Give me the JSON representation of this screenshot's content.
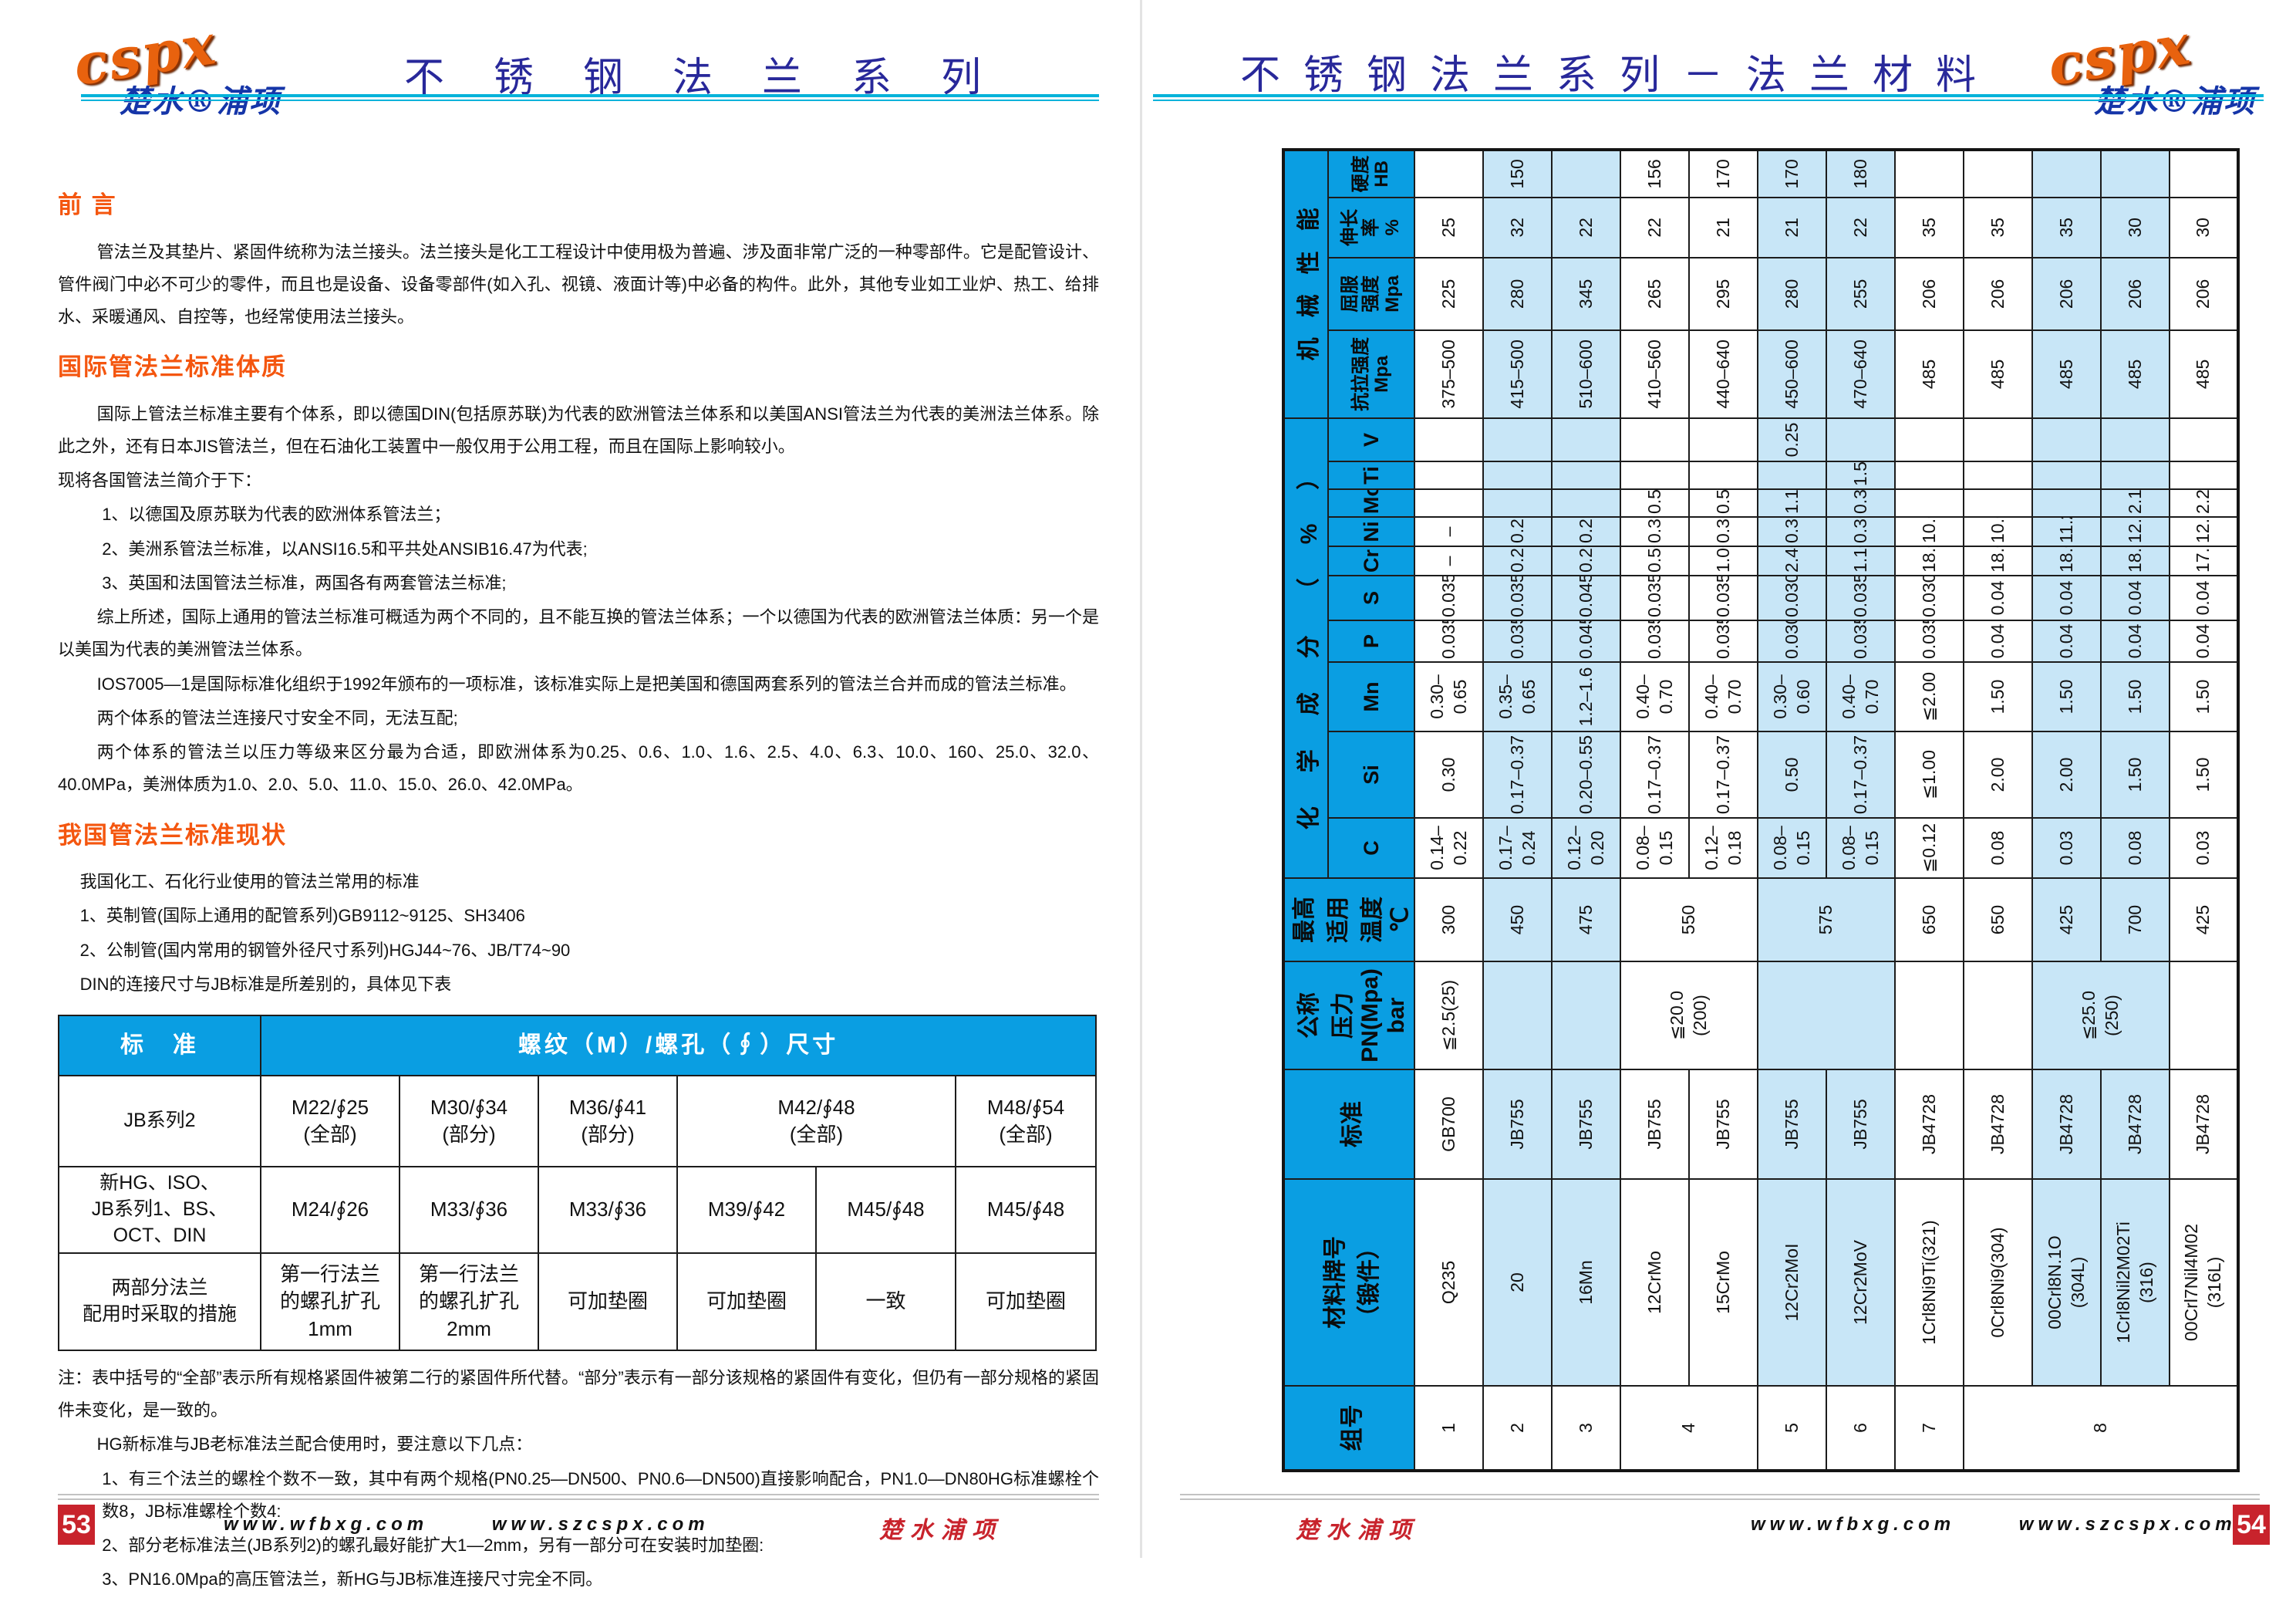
{
  "brand": {
    "logo": "cspx",
    "name": "楚水®浦项",
    "script": "楚水浦项"
  },
  "footer": {
    "url1": "www.wfbxg.com",
    "url2": "www.szcspx.com",
    "page_left": "53",
    "page_right": "54"
  },
  "left": {
    "title": "不锈钢法兰系列",
    "s1": {
      "heading": "前 言",
      "p1": "管法兰及其垫片、紧固件统称为法兰接头。法兰接头是化工工程设计中使用极为普遍、涉及面非常广泛的一种零部件。它是配管设计、管件阀门中必不可少的零件，而且也是设备、设备零部件(如入孔、视镜、液面计等)中必备的构件。此外，其他专业如工业炉、热工、给排水、采暖通风、自控等，也经常使用法兰接头。"
    },
    "s2": {
      "heading": "国际管法兰标准体质",
      "p1": "国际上管法兰标准主要有个体系，即以德国DIN(包括原苏联)为代表的欧洲管法兰体系和以美国ANSI管法兰为代表的美洲法兰体系。除此之外，还有日本JIS管法兰，但在石油化工装置中一般仅用于公用工程，而且在国际上影响较小。",
      "p2": "现将各国管法兰简介于下：",
      "items": [
        "1、以德国及原苏联为代表的欧洲体系管法兰；",
        "2、美洲系管法兰标准，以ANSI16.5和平共处ANSIB16.47为代表;",
        "3、英国和法国管法兰标准，两国各有两套管法兰标准;"
      ],
      "p3": "综上所述，国际上通用的管法兰标准可概适为两个不同的，且不能互换的管法兰体系；一个以德国为代表的欧洲管法兰体质：另一个是以美国为代表的美洲管法兰体系。",
      "p4": "IOS7005—1是国际标准化组织于1992年颁布的一项标准，该标准实际上是把美国和德国两套系列的管法兰合并而成的管法兰标准。",
      "p5": "两个体系的管法兰连接尺寸安全不同，无法互配;",
      "p6": "两个体系的管法兰以压力等级来区分最为合适，即欧洲体系为0.25、0.6、1.0、1.6、2.5、4.0、6.3、10.0、160、25.0、32.0、40.0MPa，美洲体质为1.0、2.0、5.0、11.0、15.0、26.0、42.0MPa。"
    },
    "s3": {
      "heading": "我国管法兰标准现状",
      "p1": "我国化工、石化行业使用的管法兰常用的标准",
      "items": [
        "1、英制管(国际上通用的配管系列)GB9112~9125、SH3406",
        "2、公制管(国内常用的钢管外径尺寸系列)HGJ44~76、JB/T74~90"
      ],
      "p2": "DIN的连接尺寸与JB标准是所差别的，具体见下表"
    },
    "table": {
      "h_std": "标　准",
      "h_size": "螺纹（M）/螺孔（∮）尺寸",
      "r1": {
        "label": "JB系列2",
        "c1": "M22/∮25\n(全部)",
        "c2": "M30/∮34\n(部分)",
        "c3": "M36/∮41\n(部分)",
        "c4": "M42/∮48\n(全部)",
        "c5": "M48/∮54\n(全部)"
      },
      "r2": {
        "label": "新HG、ISO、\nJB系列1、BS、\nOCT、DIN",
        "c1": "M24/∮26",
        "c2": "M33/∮36",
        "c3": "M33/∮36",
        "c4": "M39/∮42",
        "c5": "M45/∮48",
        "c6": "M45/∮48"
      },
      "r3": {
        "label": "两部分法兰\n配用时采取的措施",
        "c1": "第一行法兰\n的螺孔扩孔\n1mm",
        "c2": "第一行法兰\n的螺孔扩孔\n2mm",
        "c3": "可加垫圈",
        "c4": "可加垫圈",
        "c5": "一致",
        "c6": "可加垫圈"
      }
    },
    "notes": {
      "p1": "注：表中括号的“全部”表示所有规格紧固件被第二行的紧固件所代替。“部分”表示有一部分该规格的紧固件有变化，但仍有一部分规格的紧固件未变化，是一致的。",
      "p2": "HG新标准与JB老标准法兰配合使用时，要注意以下几点：",
      "items": [
        "1、有三个法兰的螺栓个数不一致，其中有两个规格(PN0.25—DN500、PN0.6—DN500)直接影响配合，PN1.0—DN80HG标准螺栓个数8，JB标准螺栓个数4:",
        "2、部分老标准法兰(JB系列2)的螺孔最好能扩大1—2mm，另有一部分可在安装时加垫圈:",
        "3、PN16.0Mpa的高压管法兰，新HG与JB标准连接尺寸完全不同。"
      ]
    }
  },
  "right": {
    "title": "不锈钢法兰系列－法兰材料",
    "mt": {
      "headers": {
        "no": "组号",
        "grade": "材料牌号\n（锻件）",
        "std": "标准",
        "pressure": "公称\n压力\nPN(Mpa)\nbar",
        "temp": "最高\n适用\n温度\n℃",
        "chem": "化学成分（%）",
        "mech": "机械性能",
        "c": "C",
        "si": "Si",
        "mn": "Mn",
        "p": "P",
        "s": "S",
        "cr": "Cr",
        "ni": "Ni",
        "mo": "Mo",
        "ti": "Ti",
        "v": "V",
        "tensile": "抗拉强度\nMpa",
        "yield": "屈服\n强度\nMpa",
        "elong": "伸长率\n%",
        "hb": "硬度\nHB"
      },
      "materials": [
        {
          "no": "1",
          "grade": "Q235",
          "note": "",
          "std": "GB700",
          "pressure": "≦2.5(25)",
          "temp": "300",
          "c": "0.14–0.22",
          "si": "0.30",
          "mn": "0.30–0.65",
          "p": "0.035",
          "s": "0.035",
          "cr": "–",
          "ni": "–",
          "mo": "",
          "ti": "",
          "v": "",
          "tensile": "375–500",
          "yield": "225",
          "elong": "25",
          "hb": "",
          "shade": "w"
        },
        {
          "no": "2",
          "grade": "20",
          "note": "",
          "std": "JB755",
          "pressure": "",
          "temp": "450",
          "c": "0.17–0.24",
          "si": "0.17–0.37",
          "mn": "0.35–0.65",
          "p": "0.035",
          "s": "0.035",
          "cr": "0.25",
          "ni": "0.25",
          "mo": "",
          "ti": "",
          "v": "",
          "tensile": "415–500",
          "yield": "280",
          "elong": "32",
          "hb": "150",
          "shade": "b"
        },
        {
          "no": "3",
          "grade": "16Mn",
          "note": "",
          "std": "JB755",
          "pressure": "",
          "temp": "475",
          "c": "0.12–0.20",
          "si": "0.20–0.55",
          "mn": "1.2–1.6",
          "p": "0.045",
          "s": "0.045",
          "cr": "0.25",
          "ni": "0.25",
          "mo": "",
          "ti": "",
          "v": "",
          "tensile": "510–600",
          "yield": "345",
          "elong": "22",
          "hb": "",
          "shade": "b"
        },
        {
          "no": "4",
          "grade": "12CrMo",
          "note": "",
          "std": "JB755",
          "pressure": "≦20.0\n(200)",
          "temp": "550",
          "c": "0.08–0.15",
          "si": "0.17–0.37",
          "mn": "0.40–0.70",
          "p": "0.035",
          "s": "0.035",
          "cr": "0.50",
          "ni": "0.30",
          "mo": "0.50",
          "ti": "",
          "v": "",
          "tensile": "410–560",
          "yield": "265",
          "elong": "22",
          "hb": "156",
          "shade": "w"
        },
        {
          "no": "",
          "grade": "15CrMo",
          "note": "",
          "std": "JB755",
          "pressure": "",
          "temp": "",
          "c": "0.12–0.18",
          "si": "0.17–0.37",
          "mn": "0.40–0.70",
          "p": "0.035",
          "s": "0.035",
          "cr": "1.00",
          "ni": "0.30",
          "mo": "0.50",
          "ti": "",
          "v": "",
          "tensile": "440–640",
          "yield": "295",
          "elong": "21",
          "hb": "170",
          "shade": "w"
        },
        {
          "no": "5",
          "grade": "12Cr2MoI",
          "note": "",
          "std": "JB755",
          "pressure": "",
          "temp": "575",
          "c": "0.08–0.15",
          "si": "0.50",
          "mn": "0.30–0.60",
          "p": "0.030",
          "s": "0.030",
          "cr": "2.40",
          "ni": "0.30",
          "mo": "1.10",
          "ti": "",
          "v": "0.25",
          "tensile": "450–600",
          "yield": "280",
          "elong": "21",
          "hb": "170",
          "shade": "b"
        },
        {
          "no": "6",
          "grade": "12Cr2MoV",
          "note": "",
          "std": "JB755",
          "pressure": "",
          "temp": "",
          "c": "0.08–0.15",
          "si": "0.17–0.37",
          "mn": "0.40–0.70",
          "p": "0.035",
          "s": "0.035",
          "cr": "1.10",
          "ni": "0.30",
          "mo": "0.35",
          "ti": "1.5",
          "v": "",
          "tensile": "470–640",
          "yield": "255",
          "elong": "22",
          "hb": "180",
          "shade": "b"
        },
        {
          "no": "7",
          "grade": "1Crl8Ni9Ti(321)",
          "note": "",
          "std": "JB4728",
          "pressure": "",
          "temp": "650",
          "c": "≦0.12",
          "si": "≦1.00",
          "mn": "≦2.00",
          "p": "0.035",
          "s": "0.030",
          "cr": "18.0",
          "ni": "10.00",
          "mo": "",
          "ti": "",
          "v": "",
          "tensile": "485",
          "yield": "206",
          "elong": "35",
          "hb": "",
          "shade": "w"
        },
        {
          "no": "8",
          "grade": "0Crl8Ni9(304)",
          "note": "",
          "std": "JB4728",
          "pressure": "",
          "temp": "650",
          "c": "0.08",
          "si": "2.00",
          "mn": "1.50",
          "p": "0.04",
          "s": "0.04",
          "cr": "18.0",
          "ni": "10.00",
          "mo": "",
          "ti": "",
          "v": "",
          "tensile": "485",
          "yield": "206",
          "elong": "35",
          "hb": "",
          "shade": "w"
        },
        {
          "no": "",
          "grade": "00Crl8N.1O",
          "note": "(304L)",
          "std": "JB4728",
          "pressure": "≦25.0\n(250)",
          "temp": "425",
          "c": "0.03",
          "si": "2.00",
          "mn": "1.50",
          "p": "0.04",
          "s": "0.04",
          "cr": "18.0",
          "ni": "11.20",
          "mo": "",
          "ti": "",
          "v": "",
          "tensile": "485",
          "yield": "206",
          "elong": "35",
          "hb": "",
          "shade": "b"
        },
        {
          "no": "",
          "grade": "1Crl8Nil2M02Ti",
          "note": "(316)",
          "std": "JB4728",
          "pressure": "",
          "temp": "700",
          "c": "0.08",
          "si": "1.50",
          "mn": "1.50",
          "p": "0.04",
          "s": "0.04",
          "cr": "18.50",
          "ni": "12.30",
          "mo": "2.10",
          "ti": "",
          "v": "",
          "tensile": "485",
          "yield": "206",
          "elong": "30",
          "hb": "",
          "shade": "b"
        },
        {
          "no": "",
          "grade": "00Crl7Nil4M02",
          "note": "(316L)",
          "std": "JB4728",
          "pressure": "",
          "temp": "425",
          "c": "0.03",
          "si": "1.50",
          "mn": "1.50",
          "p": "0.04",
          "s": "0.04",
          "cr": "17.20",
          "ni": "12.50",
          "mo": "2.20",
          "ti": "",
          "v": "",
          "tensile": "485",
          "yield": "206",
          "elong": "30",
          "hb": "",
          "shade": "w"
        }
      ]
    }
  }
}
